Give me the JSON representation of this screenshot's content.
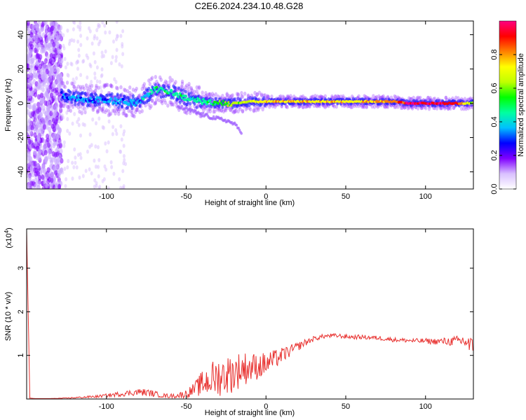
{
  "figure": {
    "title": "C2E6.2024.234.10.48.G28"
  },
  "chart_data": [
    {
      "type": "heatmap",
      "xlabel": "Height of straight line (km)",
      "ylabel": "Frequency (Hz)",
      "xlim": [
        -150,
        130
      ],
      "ylim": [
        -50,
        48
      ],
      "x_ticks": [
        -100,
        -50,
        0,
        50,
        100
      ],
      "x_tick_labels": [
        "-100",
        "-50",
        "0",
        "50",
        "100"
      ],
      "y_ticks": [
        -40,
        -20,
        0,
        20,
        40
      ],
      "y_tick_labels": [
        "-40",
        "-20",
        "0",
        "20",
        "40"
      ],
      "grid": false,
      "colorbar": {
        "label": "Normalized spectral amplitude",
        "range": [
          0,
          1
        ],
        "ticks": [
          0.0,
          0.2,
          0.4,
          0.6,
          0.8
        ],
        "tick_labels": [
          "0.0",
          "0.2",
          "0.4",
          "0.6",
          "0.8"
        ],
        "colormap": [
          "#ffffff",
          "#d9c0ff",
          "#8000ff",
          "#0000ff",
          "#00c0ff",
          "#00ffa0",
          "#00ff00",
          "#c0ff00",
          "#ffff00",
          "#ff8000",
          "#ff0000",
          "#ff0080"
        ]
      },
      "ridge": {
        "x": [
          -128,
          -120,
          -110,
          -100,
          -90,
          -80,
          -70,
          -60,
          -50,
          -40,
          -30,
          -20,
          -10,
          0,
          20,
          40,
          60,
          80,
          90,
          100,
          110,
          120,
          130
        ],
        "frequency": [
          5,
          3,
          2,
          2,
          1,
          0,
          8,
          7,
          3,
          1,
          0,
          0,
          1,
          1,
          1,
          1,
          1,
          1,
          0,
          0,
          0,
          0,
          0
        ],
        "amplitude": [
          0.3,
          0.35,
          0.35,
          0.35,
          0.35,
          0.35,
          0.45,
          0.5,
          0.45,
          0.45,
          0.55,
          0.6,
          0.7,
          0.75,
          0.75,
          0.75,
          0.75,
          0.8,
          0.95,
          0.95,
          0.95,
          0.9,
          0.6
        ]
      },
      "branch": {
        "x": [
          -55,
          -45,
          -35,
          -25,
          -20,
          -15
        ],
        "frequency": [
          -2,
          -5,
          -8,
          -10,
          -12,
          -17
        ]
      }
    },
    {
      "type": "line",
      "xlabel": "Height of straight line (km)",
      "ylabel": "SNR (10 * v/v)",
      "multiplier_label": "(x10",
      "multiplier_exponent": "4",
      "multiplier_close": ")",
      "xlim": [
        -150,
        130
      ],
      "ylim": [
        0,
        3.9
      ],
      "x_ticks": [
        -100,
        -50,
        0,
        50,
        100
      ],
      "x_tick_labels": [
        "-100",
        "-50",
        "0",
        "50",
        "100"
      ],
      "y_ticks": [
        1,
        2,
        3
      ],
      "y_tick_labels": [
        "1",
        "2",
        "3"
      ],
      "grid": false,
      "series": [
        {
          "color": "#e8312f",
          "x": [
            -150,
            -148,
            -145,
            -135,
            -125,
            -115,
            -105,
            -100,
            -95,
            -90,
            -85,
            -80,
            -75,
            -70,
            -65,
            -60,
            -55,
            -50,
            -45,
            -40,
            -35,
            -30,
            -25,
            -20,
            -15,
            -10,
            -5,
            0,
            5,
            10,
            15,
            20,
            25,
            30,
            35,
            40,
            45,
            50,
            55,
            60,
            65,
            70,
            75,
            80,
            85,
            90,
            95,
            100,
            105,
            110,
            115,
            120,
            125,
            128,
            130
          ],
          "y": [
            3.85,
            0.02,
            0.01,
            0.01,
            0.02,
            0.04,
            0.06,
            0.08,
            0.1,
            0.12,
            0.14,
            0.16,
            0.15,
            0.12,
            0.08,
            0.07,
            0.08,
            0.12,
            0.22,
            0.35,
            0.45,
            0.5,
            0.55,
            0.6,
            0.7,
            0.72,
            0.75,
            0.8,
            0.9,
            1.0,
            1.1,
            1.2,
            1.3,
            1.38,
            1.43,
            1.45,
            1.45,
            1.43,
            1.42,
            1.42,
            1.41,
            1.4,
            1.38,
            1.36,
            1.35,
            1.34,
            1.33,
            1.33,
            1.32,
            1.32,
            1.32,
            1.33,
            1.33,
            1.2,
            1.15
          ],
          "noise": [
            0,
            0,
            0,
            0,
            0.01,
            0.02,
            0.03,
            0.04,
            0.05,
            0.06,
            0.07,
            0.08,
            0.08,
            0.07,
            0.05,
            0.05,
            0.06,
            0.1,
            0.15,
            0.3,
            0.4,
            0.45,
            0.45,
            0.45,
            0.4,
            0.35,
            0.3,
            0.28,
            0.22,
            0.18,
            0.14,
            0.1,
            0.08,
            0.06,
            0.05,
            0.05,
            0.05,
            0.05,
            0.05,
            0.05,
            0.05,
            0.05,
            0.05,
            0.05,
            0.05,
            0.05,
            0.06,
            0.06,
            0.07,
            0.08,
            0.1,
            0.12,
            0.18,
            0.25,
            0.25
          ]
        }
      ]
    }
  ]
}
